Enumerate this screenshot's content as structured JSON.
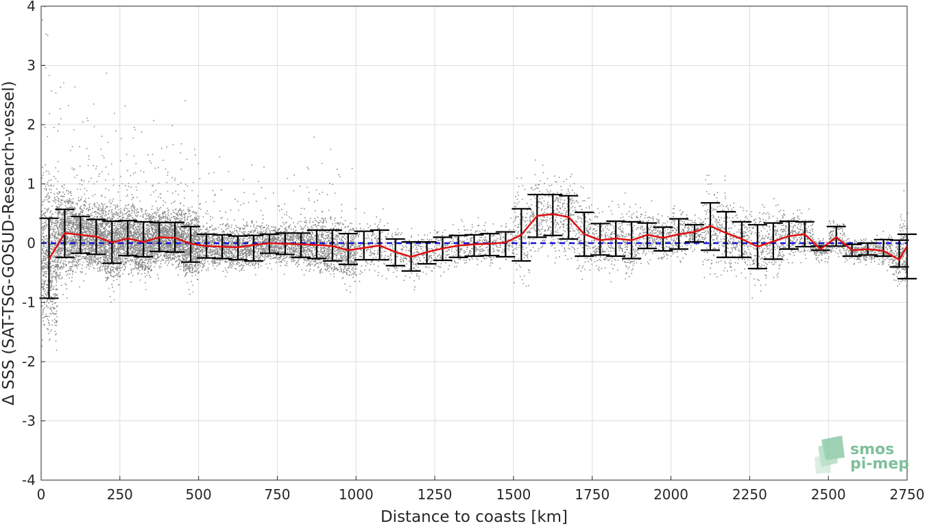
{
  "chart_data": {
    "type": "scatter",
    "xlabel": "Distance to coasts [km]",
    "ylabel": "Δ SSS (SAT-TSG-GOSUD-Research-vessel)",
    "xlim": [
      0,
      2750
    ],
    "ylim": [
      -4,
      4
    ],
    "xticks": [
      0,
      250,
      500,
      750,
      1000,
      1250,
      1500,
      1750,
      2000,
      2250,
      2500,
      2750
    ],
    "yticks": [
      -4,
      -3,
      -2,
      -1,
      0,
      1,
      2,
      3,
      4
    ],
    "grid": true,
    "colors": {
      "scatter": "#808080",
      "mean_line": "#e01010",
      "errorbars": "#000000",
      "zero_line": "#1010d0"
    },
    "zero_line": {
      "y": 0,
      "style": "dashed"
    },
    "binned_mean": {
      "x": [
        25,
        75,
        125,
        175,
        225,
        275,
        325,
        375,
        425,
        475,
        525,
        575,
        625,
        675,
        725,
        775,
        825,
        875,
        925,
        975,
        1025,
        1075,
        1125,
        1175,
        1225,
        1275,
        1325,
        1375,
        1425,
        1475,
        1525,
        1575,
        1625,
        1675,
        1725,
        1775,
        1825,
        1875,
        1925,
        1975,
        2025,
        2075,
        2125,
        2175,
        2225,
        2275,
        2325,
        2375,
        2425,
        2475,
        2525,
        2575,
        2625,
        2675,
        2725,
        2750
      ],
      "mean": [
        -0.27,
        0.17,
        0.14,
        0.11,
        0.01,
        0.08,
        0.02,
        0.1,
        0.09,
        -0.01,
        -0.05,
        -0.06,
        -0.07,
        -0.03,
        0.0,
        -0.01,
        -0.02,
        -0.03,
        -0.05,
        -0.12,
        -0.08,
        -0.04,
        -0.15,
        -0.23,
        -0.15,
        -0.09,
        -0.04,
        -0.02,
        -0.01,
        0.01,
        0.14,
        0.46,
        0.49,
        0.44,
        0.15,
        0.05,
        0.08,
        0.05,
        0.14,
        0.09,
        0.15,
        0.19,
        0.29,
        0.17,
        0.07,
        -0.06,
        0.03,
        0.12,
        0.15,
        -0.1,
        0.1,
        -0.12,
        -0.1,
        -0.13,
        -0.28,
        -0.05
      ],
      "lower": [
        -0.93,
        -0.24,
        -0.17,
        -0.19,
        -0.34,
        -0.21,
        -0.23,
        -0.14,
        -0.15,
        -0.32,
        -0.25,
        -0.26,
        -0.28,
        -0.3,
        -0.17,
        -0.19,
        -0.24,
        -0.26,
        -0.3,
        -0.36,
        -0.28,
        -0.28,
        -0.38,
        -0.47,
        -0.35,
        -0.29,
        -0.24,
        -0.22,
        -0.21,
        -0.23,
        -0.3,
        0.1,
        0.13,
        0.07,
        -0.22,
        -0.2,
        -0.22,
        -0.26,
        -0.09,
        -0.13,
        -0.1,
        0.02,
        -0.12,
        -0.24,
        -0.24,
        -0.43,
        -0.27,
        -0.1,
        -0.06,
        -0.12,
        -0.05,
        -0.22,
        -0.2,
        -0.22,
        -0.4,
        -0.6
      ],
      "upper": [
        0.42,
        0.57,
        0.45,
        0.4,
        0.37,
        0.38,
        0.36,
        0.35,
        0.35,
        0.28,
        0.15,
        0.14,
        0.12,
        0.13,
        0.15,
        0.17,
        0.17,
        0.22,
        0.22,
        0.16,
        0.2,
        0.22,
        0.07,
        0.02,
        0.02,
        0.1,
        0.13,
        0.14,
        0.16,
        0.19,
        0.58,
        0.82,
        0.82,
        0.8,
        0.52,
        0.33,
        0.37,
        0.36,
        0.34,
        0.27,
        0.41,
        0.31,
        0.68,
        0.53,
        0.36,
        0.31,
        0.34,
        0.37,
        0.36,
        -0.05,
        0.28,
        -0.02,
        0.0,
        0.06,
        0.05,
        0.15
      ]
    }
  },
  "logo": {
    "line1": "smos",
    "line2": "pi-mep"
  }
}
